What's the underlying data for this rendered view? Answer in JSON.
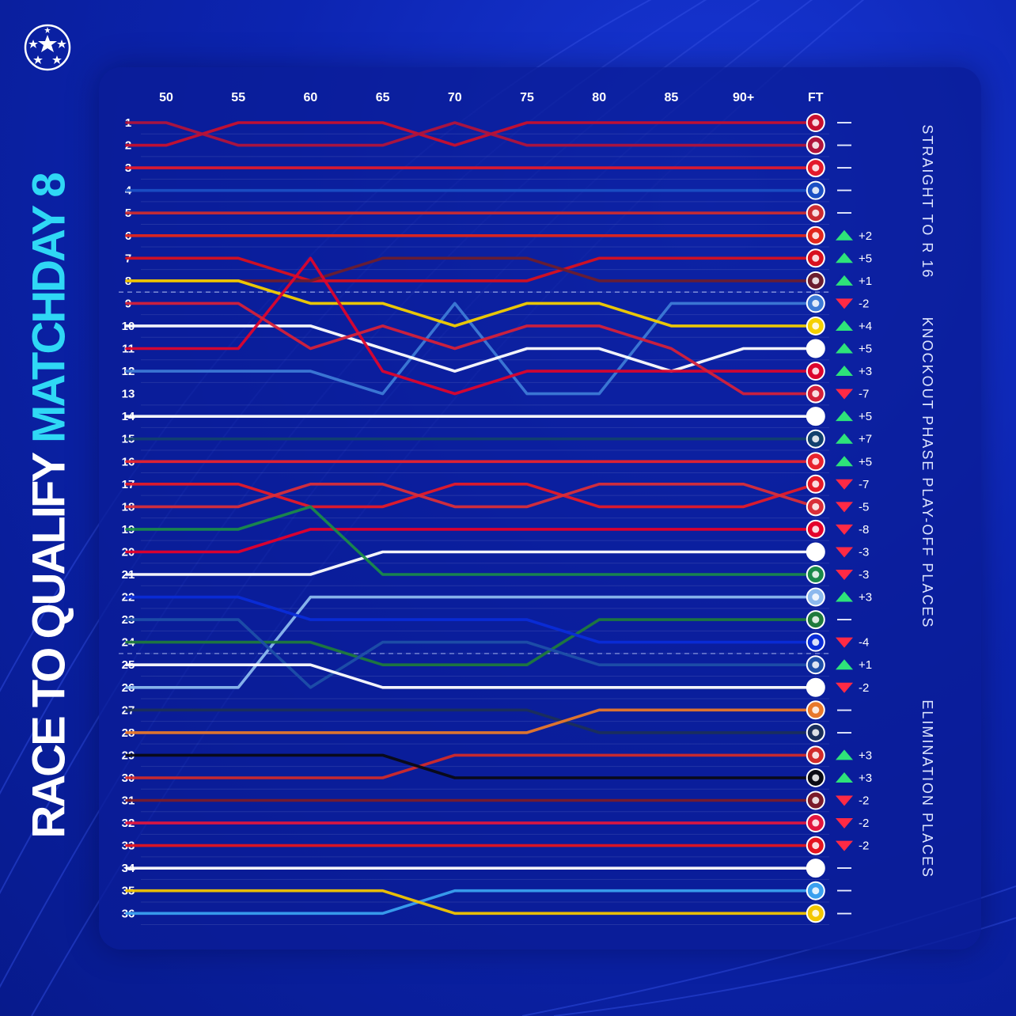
{
  "header": {
    "title_part1": "RACE TO QUALIFY",
    "title_part2": "MATCHDAY 8",
    "logo_icon": "champions-league-starball-icon"
  },
  "zones": [
    {
      "label": "STRAIGHT TO R 16",
      "from_rank": 1,
      "to_rank": 8
    },
    {
      "label": "KNOCKOUT PHASE PLAY-OFF PLACES",
      "from_rank": 9,
      "to_rank": 24
    },
    {
      "label": "ELIMINATION PLACES",
      "from_rank": 25,
      "to_rank": 36
    }
  ],
  "chart_data": {
    "type": "line",
    "x_ticks": [
      "50",
      "55",
      "60",
      "65",
      "70",
      "75",
      "80",
      "85",
      "90+",
      "FT"
    ],
    "y_ticks": [
      "1",
      "2",
      "3",
      "4",
      "5",
      "6",
      "7",
      "8",
      "9",
      "10",
      "11",
      "12",
      "13",
      "14",
      "15",
      "16",
      "17",
      "18",
      "19",
      "20",
      "21",
      "22",
      "23",
      "24",
      "25",
      "26",
      "27",
      "28",
      "29",
      "30",
      "31",
      "32",
      "33",
      "34",
      "35",
      "36"
    ],
    "y_reversed": true,
    "ylim": [
      1,
      36
    ],
    "cutoff_lines_after_rank": [
      8,
      24
    ],
    "series": [
      {
        "ranks": [
          2,
          1,
          1,
          1,
          2,
          1,
          1,
          1,
          1,
          1
        ],
        "color": "#c8102e",
        "badge": "liverpool-badge-icon",
        "change": "—",
        "dir": "same"
      },
      {
        "ranks": [
          1,
          2,
          2,
          2,
          1,
          2,
          2,
          2,
          2,
          2
        ],
        "color": "#b0143c",
        "badge": "barcelona-badge-icon",
        "change": "—",
        "dir": "same"
      },
      {
        "ranks": [
          3,
          3,
          3,
          3,
          3,
          3,
          3,
          3,
          3,
          3
        ],
        "color": "#e3192b",
        "badge": "arsenal-badge-icon",
        "change": "—",
        "dir": "same"
      },
      {
        "ranks": [
          4,
          4,
          4,
          4,
          4,
          4,
          4,
          4,
          4,
          4
        ],
        "color": "#1a4fc4",
        "badge": "inter-badge-icon",
        "change": "—",
        "dir": "same"
      },
      {
        "ranks": [
          5,
          5,
          5,
          5,
          5,
          5,
          5,
          5,
          5,
          5
        ],
        "color": "#cb2c31",
        "badge": "atletico-badge-icon",
        "change": "—",
        "dir": "same"
      },
      {
        "ranks": [
          6,
          6,
          6,
          6,
          6,
          6,
          6,
          6,
          6,
          6
        ],
        "color": "#e1261c",
        "badge": "leverkusen-badge-icon",
        "change": "+2",
        "dir": "up"
      },
      {
        "ranks": [
          7,
          7,
          8,
          8,
          8,
          8,
          7,
          7,
          7,
          7
        ],
        "color": "#d8101f",
        "badge": "lille-badge-icon",
        "change": "+5",
        "dir": "up"
      },
      {
        "ranks": [
          8,
          8,
          8,
          7,
          7,
          7,
          8,
          8,
          8,
          8
        ],
        "color": "#6b1d2f",
        "badge": "aston-villa-badge-icon",
        "change": "+1",
        "dir": "up"
      },
      {
        "ranks": [
          12,
          12,
          12,
          13,
          9,
          13,
          13,
          9,
          9,
          9
        ],
        "color": "#3d7ad6",
        "badge": "atalanta-badge-icon",
        "change": "-2",
        "dir": "down"
      },
      {
        "ranks": [
          8,
          8,
          9,
          9,
          10,
          9,
          9,
          10,
          10,
          10
        ],
        "color": "#f5d000",
        "badge": "dortmund-badge-icon",
        "change": "+4",
        "dir": "up"
      },
      {
        "ranks": [
          10,
          10,
          10,
          11,
          12,
          11,
          11,
          12,
          11,
          11
        ],
        "color": "#ffffff",
        "badge": "real-madrid-badge-icon",
        "change": "+5",
        "dir": "up"
      },
      {
        "ranks": [
          11,
          11,
          7,
          12,
          13,
          12,
          12,
          12,
          12,
          12
        ],
        "color": "#dc052d",
        "badge": "bayern-badge-icon",
        "change": "+3",
        "dir": "up"
      },
      {
        "ranks": [
          9,
          9,
          11,
          10,
          11,
          10,
          10,
          11,
          13,
          13
        ],
        "color": "#d4213a",
        "badge": "milan-badge-icon",
        "change": "-7",
        "dir": "down"
      },
      {
        "ranks": [
          14,
          14,
          14,
          14,
          14,
          14,
          14,
          14,
          14,
          14
        ],
        "color": "#ffffff",
        "badge": "psv-badge-icon",
        "change": "+5",
        "dir": "up"
      },
      {
        "ranks": [
          15,
          15,
          15,
          15,
          15,
          15,
          15,
          15,
          15,
          15
        ],
        "color": "#12406e",
        "badge": "psg-badge-icon",
        "change": "+7",
        "dir": "up"
      },
      {
        "ranks": [
          16,
          16,
          16,
          16,
          16,
          16,
          16,
          16,
          16,
          16
        ],
        "color": "#e8232e",
        "badge": "benfica-badge-icon",
        "change": "+5",
        "dir": "up"
      },
      {
        "ranks": [
          17,
          17,
          18,
          18,
          17,
          17,
          18,
          18,
          18,
          17
        ],
        "color": "#e51a28",
        "badge": "monaco-badge-icon",
        "change": "-7",
        "dir": "down"
      },
      {
        "ranks": [
          18,
          18,
          17,
          17,
          18,
          18,
          17,
          17,
          17,
          18
        ],
        "color": "#d92e39",
        "badge": "brest-badge-icon",
        "change": "-5",
        "dir": "down"
      },
      {
        "ranks": [
          20,
          20,
          19,
          19,
          19,
          19,
          19,
          19,
          19,
          19
        ],
        "color": "#e4002b",
        "badge": "feyenoord-badge-icon",
        "change": "-8",
        "dir": "down"
      },
      {
        "ranks": [
          21,
          21,
          21,
          20,
          20,
          20,
          20,
          20,
          20,
          20
        ],
        "color": "#ffffff",
        "badge": "juventus-badge-icon",
        "change": "-3",
        "dir": "down"
      },
      {
        "ranks": [
          19,
          19,
          18,
          21,
          21,
          21,
          21,
          21,
          21,
          21
        ],
        "color": "#1a8a4a",
        "badge": "celtic-badge-icon",
        "change": "-3",
        "dir": "down"
      },
      {
        "ranks": [
          26,
          26,
          22,
          22,
          22,
          22,
          22,
          22,
          22,
          22
        ],
        "color": "#8cb9ee",
        "badge": "man-city-badge-icon",
        "change": "+3",
        "dir": "up"
      },
      {
        "ranks": [
          24,
          24,
          24,
          25,
          25,
          25,
          23,
          23,
          23,
          23
        ],
        "color": "#1f7a3c",
        "badge": "sporting-badge-icon",
        "change": "—",
        "dir": "same"
      },
      {
        "ranks": [
          22,
          22,
          23,
          23,
          23,
          23,
          24,
          24,
          24,
          24
        ],
        "color": "#0a2cd8",
        "badge": "club-brugge-badge-icon",
        "change": "-4",
        "dir": "down"
      },
      {
        "ranks": [
          23,
          23,
          26,
          24,
          24,
          24,
          25,
          25,
          25,
          25
        ],
        "color": "#1e4fa8",
        "badge": "dinamo-zagreb-badge-icon",
        "change": "+1",
        "dir": "up"
      },
      {
        "ranks": [
          25,
          25,
          25,
          26,
          26,
          26,
          26,
          26,
          26,
          26
        ],
        "color": "#ffffff",
        "badge": "stuttgart-badge-icon",
        "change": "-2",
        "dir": "down"
      },
      {
        "ranks": [
          27,
          27,
          27,
          27,
          27,
          27,
          28,
          28,
          28,
          28
        ],
        "color": "#1b2f5a",
        "badge": "shakhtar-badge-icon",
        "change": "—",
        "dir": "same"
      },
      {
        "ranks": [
          28,
          28,
          28,
          28,
          28,
          28,
          27,
          27,
          27,
          27
        ],
        "color": "#e8782a",
        "badge": "bologna-badge-icon",
        "change": "—",
        "dir": "same"
      },
      {
        "ranks": [
          30,
          30,
          30,
          30,
          29,
          29,
          29,
          29,
          29,
          29
        ],
        "color": "#d12a2a",
        "badge": "crvena-zvezda-badge-icon",
        "change": "+3",
        "dir": "up"
      },
      {
        "ranks": [
          29,
          29,
          29,
          29,
          30,
          30,
          30,
          30,
          30,
          30
        ],
        "color": "#0a0a14",
        "badge": "sturm-graz-badge-icon",
        "change": "+3",
        "dir": "up"
      },
      {
        "ranks": [
          31,
          31,
          31,
          31,
          31,
          31,
          31,
          31,
          31,
          31
        ],
        "color": "#7a1b2a",
        "badge": "sparta-praha-badge-icon",
        "change": "-2",
        "dir": "down"
      },
      {
        "ranks": [
          32,
          32,
          32,
          32,
          32,
          32,
          32,
          32,
          32,
          32
        ],
        "color": "#e2163e",
        "badge": "leipzig-badge-icon",
        "change": "-2",
        "dir": "down"
      },
      {
        "ranks": [
          33,
          33,
          33,
          33,
          33,
          33,
          33,
          33,
          33,
          33
        ],
        "color": "#e4141f",
        "badge": "girona-badge-icon",
        "change": "-2",
        "dir": "down"
      },
      {
        "ranks": [
          34,
          34,
          34,
          34,
          34,
          34,
          34,
          34,
          34,
          34
        ],
        "color": "#ffffff",
        "badge": "salzburg-badge-icon",
        "change": "—",
        "dir": "same"
      },
      {
        "ranks": [
          36,
          36,
          36,
          36,
          35,
          35,
          35,
          35,
          35,
          35
        ],
        "color": "#3aa0ef",
        "badge": "slovan-bratislava-badge-icon",
        "change": "—",
        "dir": "same"
      },
      {
        "ranks": [
          35,
          35,
          35,
          35,
          36,
          36,
          36,
          36,
          36,
          36
        ],
        "color": "#f3c600",
        "badge": "young-boys-badge-icon",
        "change": "—",
        "dir": "same"
      }
    ]
  }
}
